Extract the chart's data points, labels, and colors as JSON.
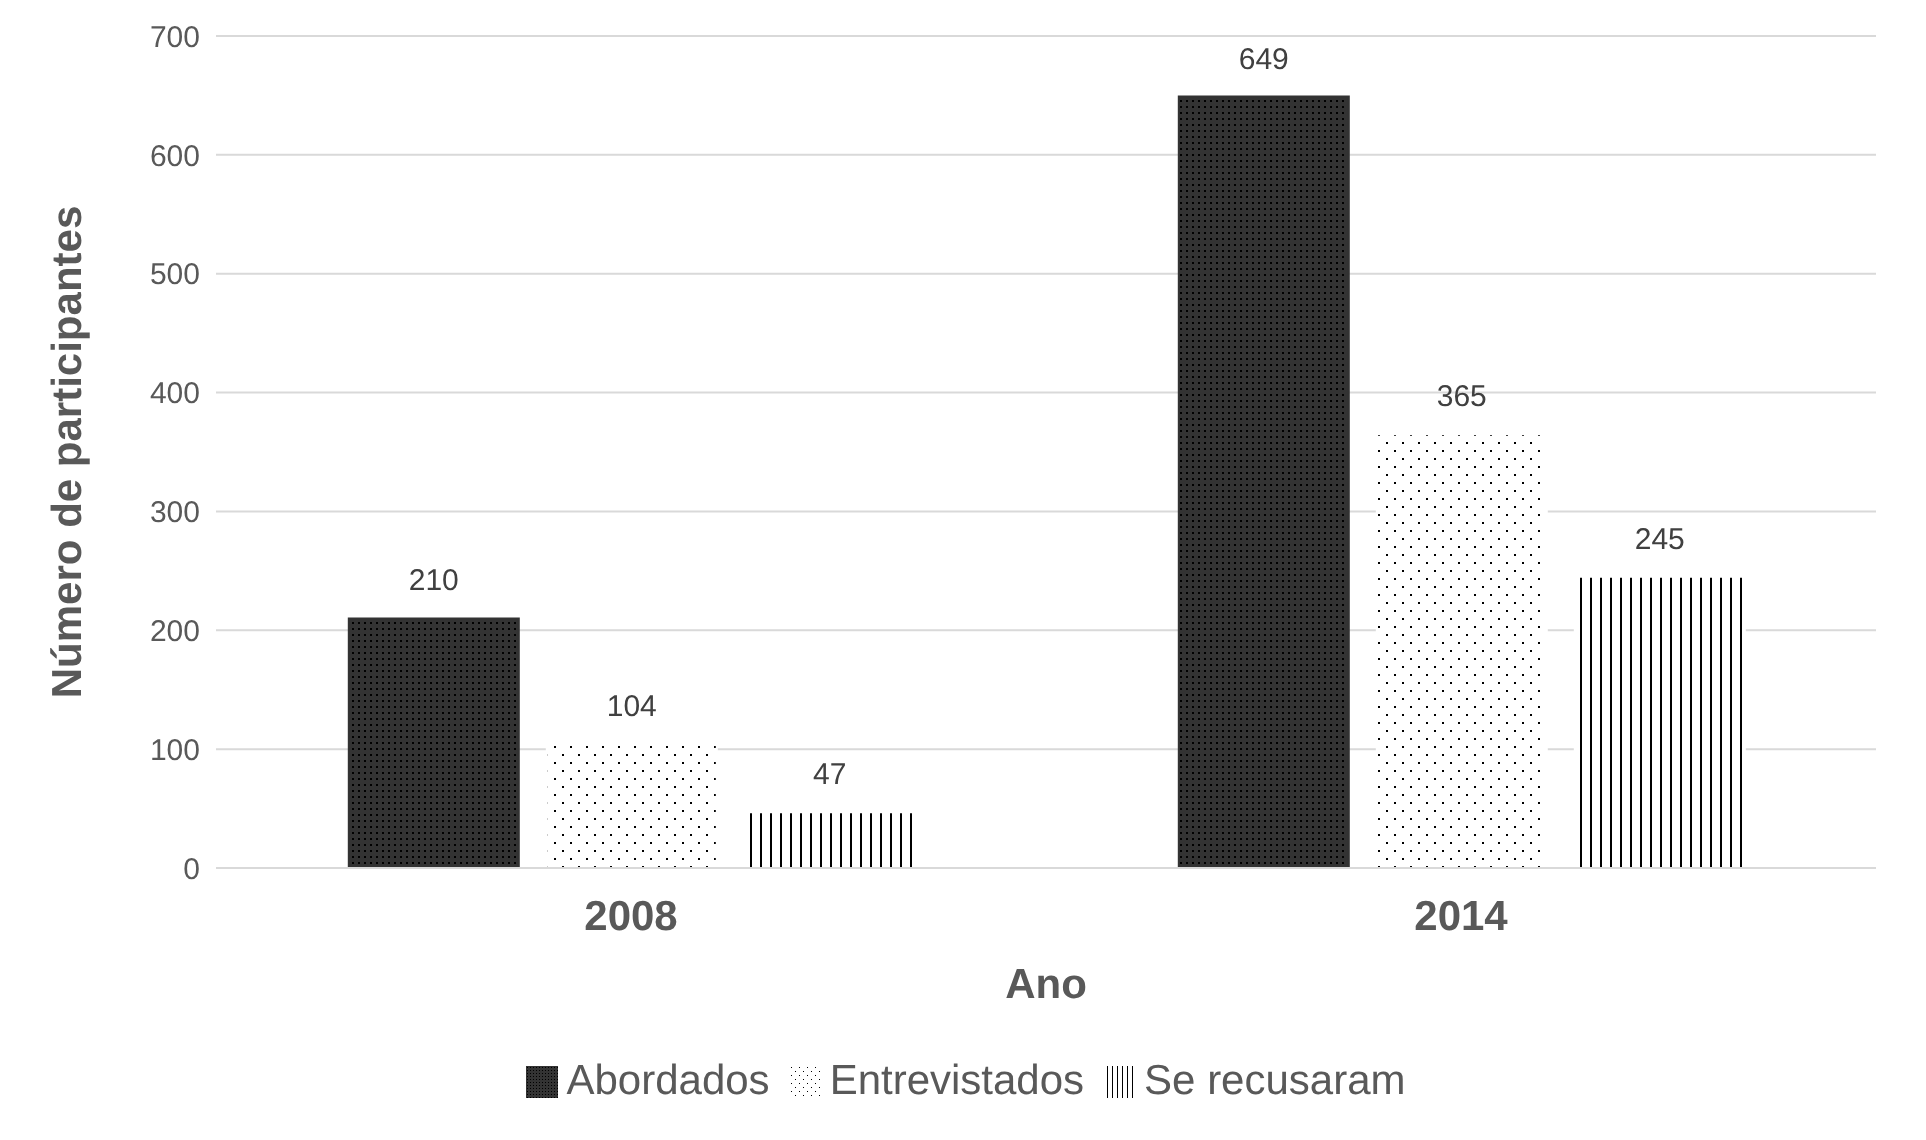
{
  "chart_data": {
    "type": "bar",
    "xlabel": "Ano",
    "ylabel": "Número de participantes",
    "categories": [
      "2008",
      "2014"
    ],
    "series": [
      {
        "name": "Abordados",
        "color": "#333333",
        "values": [
          210,
          649
        ]
      },
      {
        "name": "Entrevistados",
        "color": "#ffffff",
        "values": [
          104,
          365
        ]
      },
      {
        "name": "Se recusaram",
        "color": "#ffffff",
        "values": [
          47,
          245
        ]
      }
    ],
    "ylim": [
      0,
      700
    ],
    "yticks": [
      0,
      100,
      200,
      300,
      400,
      500,
      600,
      700
    ],
    "grid": "y",
    "legend": "bottom",
    "data_labels": true
  }
}
